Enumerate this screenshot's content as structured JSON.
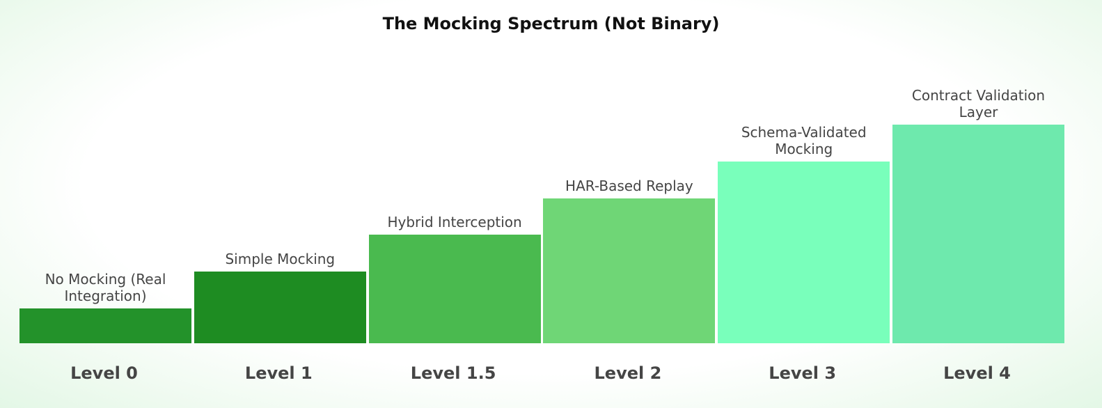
{
  "title": "The Mocking Spectrum (Not Binary)",
  "steps": [
    {
      "label": "No Mocking (Real Integration)",
      "level": "Level 0",
      "color": "#23922a"
    },
    {
      "label": "Simple Mocking",
      "level": "Level 1",
      "color": "#1e8c22"
    },
    {
      "label": "Hybrid Interception",
      "level": "Level 1.5",
      "color": "#4aba4f"
    },
    {
      "label": "HAR-Based Replay",
      "level": "Level 2",
      "color": "#6fd676"
    },
    {
      "label": "Schema-Validated Mocking",
      "level": "Level 3",
      "color": "#79ffbb"
    },
    {
      "label": "Contract Validation Layer",
      "level": "Level 4",
      "color": "#6ee9ad"
    }
  ]
}
